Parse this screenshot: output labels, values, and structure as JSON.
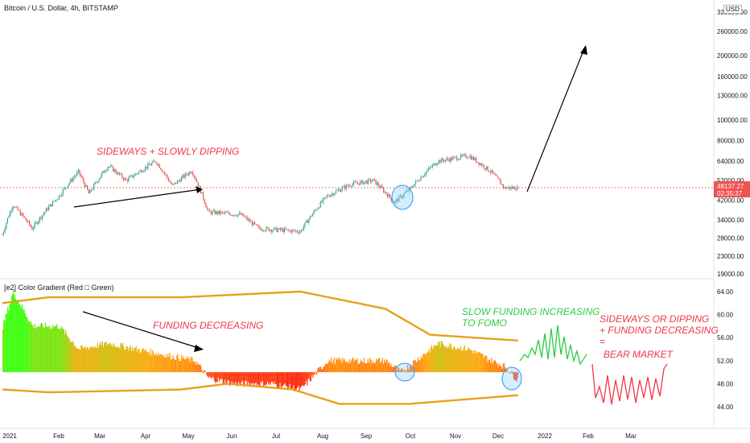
{
  "chart_data": [
    {
      "type": "candlestick",
      "title": "Bitcoin / U.S. Dollar, 4h, BITSTAMP",
      "currency": "USD",
      "scale": "log",
      "ylim": [
        19000,
        320000
      ],
      "y_ticks": [
        "320000.00",
        "260000.00",
        "200000.00",
        "160000.00",
        "130000.00",
        "100000.00",
        "80000.00",
        "64000.00",
        "52000.00",
        "42000.00",
        "34000.00",
        "28000.00",
        "23000.00",
        "19000.00"
      ],
      "last_price": "48137.27",
      "countdown": "02:35:37",
      "x_labels": [
        "2021",
        "Feb",
        "Mar",
        "Apr",
        "May",
        "Jun",
        "Jul",
        "Aug",
        "Sep",
        "Oct",
        "Nov",
        "Dec",
        "2022",
        "Feb",
        "Mar"
      ],
      "price_path": [
        {
          "date": "2021-01-01",
          "price": 29000
        },
        {
          "date": "2021-01-08",
          "price": 40000
        },
        {
          "date": "2021-01-21",
          "price": 31000
        },
        {
          "date": "2021-02-08",
          "price": 44000
        },
        {
          "date": "2021-02-21",
          "price": 57000
        },
        {
          "date": "2021-02-28",
          "price": 45000
        },
        {
          "date": "2021-03-13",
          "price": 61000
        },
        {
          "date": "2021-03-25",
          "price": 52000
        },
        {
          "date": "2021-04-14",
          "price": 64000
        },
        {
          "date": "2021-04-25",
          "price": 49000
        },
        {
          "date": "2021-05-08",
          "price": 58000
        },
        {
          "date": "2021-05-19",
          "price": 37000
        },
        {
          "date": "2021-06-10",
          "price": 36000
        },
        {
          "date": "2021-06-22",
          "price": 31000
        },
        {
          "date": "2021-07-20",
          "price": 30000
        },
        {
          "date": "2021-08-07",
          "price": 44000
        },
        {
          "date": "2021-08-23",
          "price": 50000
        },
        {
          "date": "2021-09-07",
          "price": 52000
        },
        {
          "date": "2021-09-21",
          "price": 41000
        },
        {
          "date": "2021-10-01",
          "price": 47000
        },
        {
          "date": "2021-10-20",
          "price": 64000
        },
        {
          "date": "2021-11-10",
          "price": 68000
        },
        {
          "date": "2021-11-25",
          "price": 57000
        },
        {
          "date": "2021-12-04",
          "price": 48000
        },
        {
          "date": "2021-12-13",
          "price": 48137
        }
      ],
      "annotations": [
        "SIDEWAYS + SLOWLY DIPPING"
      ]
    },
    {
      "type": "area",
      "title": "[e2] Color Gradient (Red □ Green)",
      "ylim": [
        44,
        64
      ],
      "y_ticks": [
        "64.00",
        "60.00",
        "56.00",
        "52.00",
        "48.00",
        "44.00"
      ],
      "baseline": 50,
      "funding_path": [
        {
          "date": "2021-01-01",
          "value": 58
        },
        {
          "date": "2021-01-08",
          "value": 64
        },
        {
          "date": "2021-01-21",
          "value": 58
        },
        {
          "date": "2021-02-08",
          "value": 58
        },
        {
          "date": "2021-02-21",
          "value": 54
        },
        {
          "date": "2021-03-13",
          "value": 55
        },
        {
          "date": "2021-04-01",
          "value": 54
        },
        {
          "date": "2021-04-20",
          "value": 53
        },
        {
          "date": "2021-05-10",
          "value": 52
        },
        {
          "date": "2021-05-19",
          "value": 49
        },
        {
          "date": "2021-06-05",
          "value": 48
        },
        {
          "date": "2021-07-01",
          "value": 48
        },
        {
          "date": "2021-07-20",
          "value": 47
        },
        {
          "date": "2021-08-07",
          "value": 52
        },
        {
          "date": "2021-08-23",
          "value": 52
        },
        {
          "date": "2021-09-15",
          "value": 52
        },
        {
          "date": "2021-09-25",
          "value": 50
        },
        {
          "date": "2021-10-10",
          "value": 53
        },
        {
          "date": "2021-10-20",
          "value": 55
        },
        {
          "date": "2021-11-10",
          "value": 54
        },
        {
          "date": "2021-11-25",
          "value": 52
        },
        {
          "date": "2021-12-04",
          "value": 51
        },
        {
          "date": "2021-12-13",
          "value": 48.5
        }
      ],
      "upper_band": [
        {
          "date": "2021-01-01",
          "value": 62
        },
        {
          "date": "2021-02-01",
          "value": 63
        },
        {
          "date": "2021-05-01",
          "value": 63
        },
        {
          "date": "2021-07-20",
          "value": 64
        },
        {
          "date": "2021-09-15",
          "value": 61
        },
        {
          "date": "2021-10-15",
          "value": 56.5
        },
        {
          "date": "2021-12-13",
          "value": 55.5
        }
      ],
      "lower_band": [
        {
          "date": "2021-01-01",
          "value": 47
        },
        {
          "date": "2021-02-01",
          "value": 46.5
        },
        {
          "date": "2021-05-01",
          "value": 47
        },
        {
          "date": "2021-06-01",
          "value": 48
        },
        {
          "date": "2021-07-15",
          "value": 47
        },
        {
          "date": "2021-08-15",
          "value": 44.5
        },
        {
          "date": "2021-10-01",
          "value": 44.5
        },
        {
          "date": "2021-12-13",
          "value": 46
        }
      ],
      "annotations": [
        "FUNDING DECREASING",
        "SLOW FUNDING INCREASING",
        "TO FOMO",
        "SIDEWAYS OR DIPPING",
        "+ FUNDING DECREASING",
        "=",
        "BEAR MARKET"
      ]
    }
  ]
}
